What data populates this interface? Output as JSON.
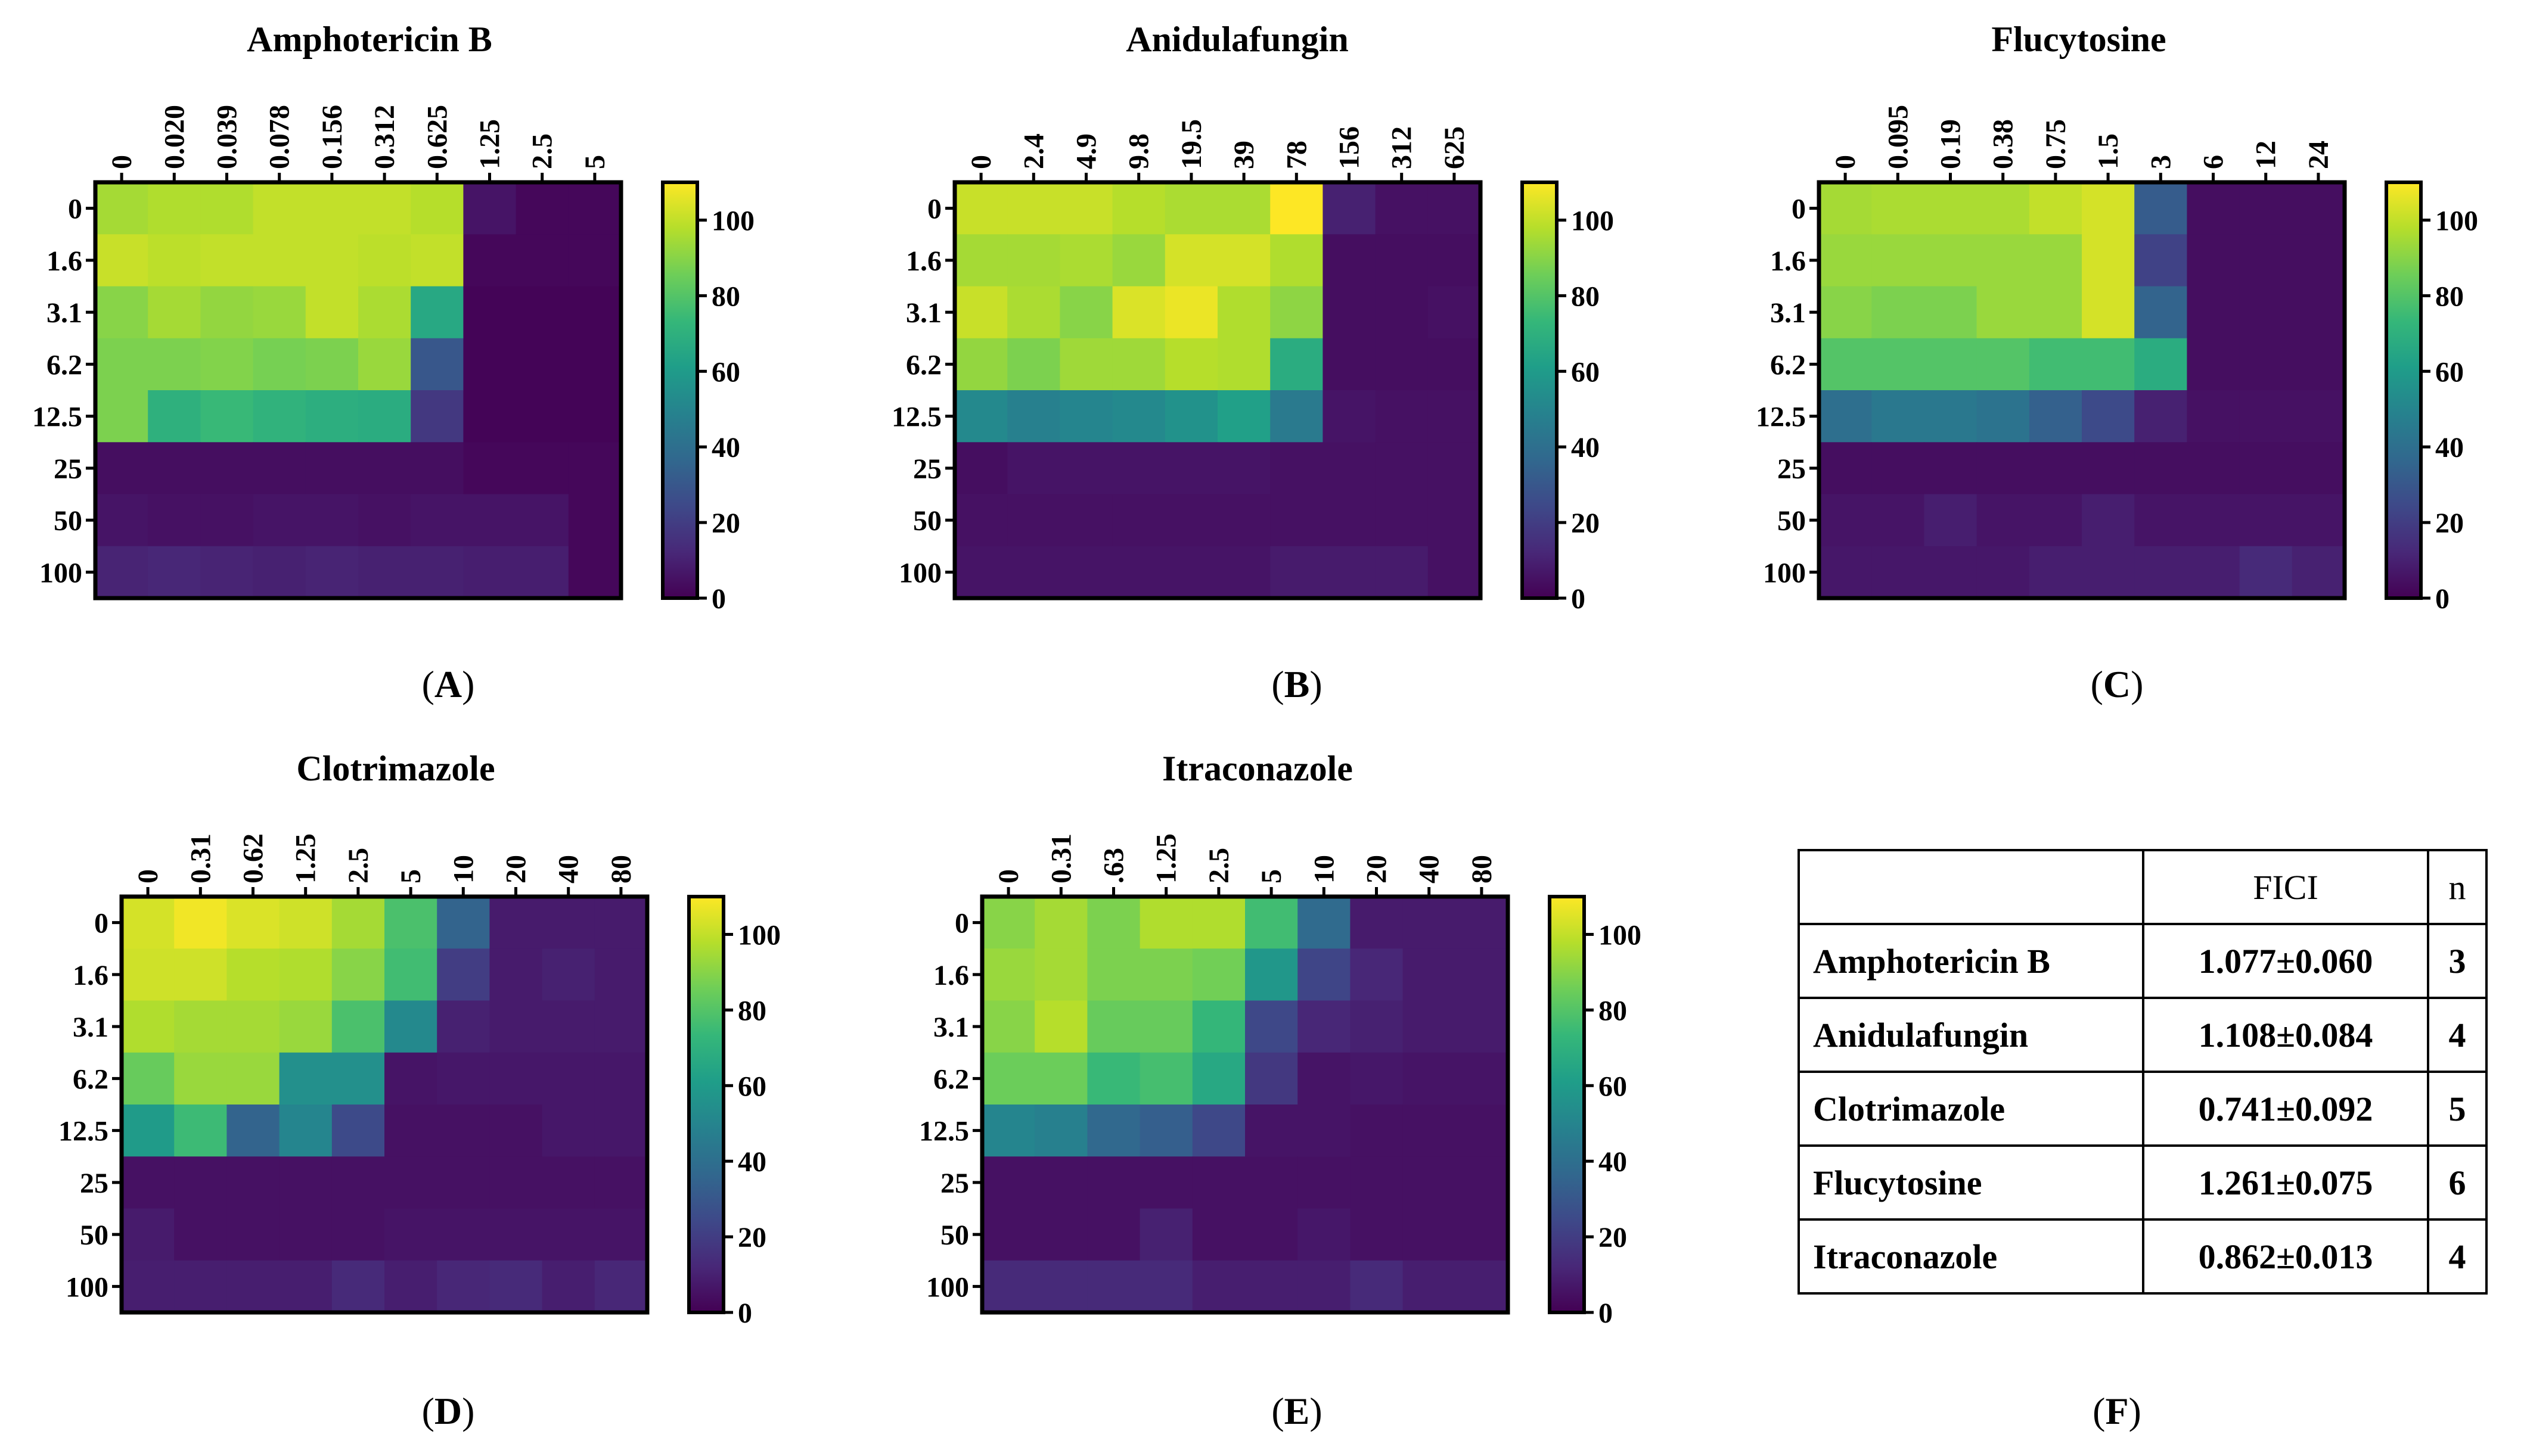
{
  "colorbar_ticks": [
    0,
    20,
    40,
    60,
    80,
    100
  ],
  "colormap": [
    "#440154",
    "#482878",
    "#3e4989",
    "#31688e",
    "#26828e",
    "#1f9e89",
    "#35b779",
    "#6ece58",
    "#b5de2b",
    "#fde725"
  ],
  "chart_data": [
    {
      "type": "heatmap",
      "panel": "A",
      "title": "Amphotericin B",
      "x": [
        "0",
        "0.020",
        "0.039",
        "0.078",
        "0.156",
        "0.312",
        "0.625",
        "1.25",
        "2.5",
        "5"
      ],
      "y": [
        "0",
        "1.6",
        "3.1",
        "6.2",
        "12.5",
        "25",
        "50",
        "100"
      ],
      "zlim": [
        0,
        110
      ],
      "values": [
        [
          95,
          97,
          97,
          100,
          100,
          100,
          98,
          6,
          2,
          2
        ],
        [
          101,
          99,
          100,
          100,
          100,
          99,
          100,
          2,
          2,
          2
        ],
        [
          90,
          95,
          92,
          93,
          100,
          96,
          66,
          1,
          1,
          1
        ],
        [
          88,
          88,
          89,
          87,
          88,
          93,
          30,
          1,
          1,
          1
        ],
        [
          88,
          70,
          74,
          71,
          69,
          68,
          18,
          1,
          1,
          1
        ],
        [
          4,
          4,
          4,
          4,
          4,
          4,
          4,
          2,
          2,
          2
        ],
        [
          6,
          5,
          5,
          6,
          6,
          5,
          6,
          6,
          6,
          2
        ],
        [
          11,
          12,
          11,
          10,
          11,
          10,
          10,
          9,
          9,
          2
        ]
      ]
    },
    {
      "type": "heatmap",
      "panel": "B",
      "title": "Anidulafungin",
      "x": [
        "0",
        "2.4",
        "4.9",
        "9.8",
        "19.5",
        "39",
        "78",
        "156",
        "312",
        "625"
      ],
      "y": [
        "0",
        "1.6",
        "3.1",
        "6.2",
        "12.5",
        "25",
        "50",
        "100"
      ],
      "zlim": [
        0,
        110
      ],
      "values": [
        [
          101,
          101,
          101,
          98,
          96,
          96,
          110,
          10,
          5,
          5
        ],
        [
          95,
          95,
          96,
          93,
          103,
          103,
          97,
          4,
          4,
          4
        ],
        [
          101,
          96,
          90,
          104,
          107,
          97,
          91,
          4,
          4,
          5
        ],
        [
          92,
          88,
          94,
          94,
          98,
          97,
          68,
          4,
          4,
          4
        ],
        [
          52,
          48,
          50,
          52,
          56,
          62,
          45,
          6,
          5,
          5
        ],
        [
          4,
          6,
          6,
          6,
          6,
          6,
          5,
          5,
          5,
          5
        ],
        [
          5,
          5,
          5,
          5,
          5,
          5,
          5,
          5,
          5,
          5
        ],
        [
          6,
          6,
          6,
          6,
          6,
          6,
          8,
          8,
          8,
          5
        ]
      ]
    },
    {
      "type": "heatmap",
      "panel": "C",
      "title": "Flucytosine",
      "x": [
        "0",
        "0.095",
        "0.19",
        "0.38",
        "0.75",
        "1.5",
        "3",
        "6",
        "12",
        "24"
      ],
      "y": [
        "0",
        "1.6",
        "3.1",
        "6.2",
        "12.5",
        "25",
        "50",
        "100"
      ],
      "zlim": [
        0,
        110
      ],
      "values": [
        [
          95,
          96,
          96,
          96,
          100,
          103,
          32,
          4,
          4,
          4
        ],
        [
          93,
          93,
          93,
          93,
          93,
          103,
          22,
          4,
          4,
          4
        ],
        [
          90,
          88,
          88,
          93,
          93,
          103,
          35,
          4,
          4,
          4
        ],
        [
          80,
          80,
          80,
          80,
          76,
          76,
          68,
          4,
          4,
          4
        ],
        [
          40,
          44,
          44,
          42,
          34,
          25,
          10,
          5,
          5,
          5
        ],
        [
          4,
          4,
          4,
          4,
          4,
          4,
          4,
          4,
          4,
          4
        ],
        [
          6,
          6,
          9,
          6,
          6,
          9,
          6,
          6,
          6,
          6
        ],
        [
          7,
          7,
          7,
          7,
          9,
          9,
          9,
          9,
          13,
          10
        ]
      ]
    },
    {
      "type": "heatmap",
      "panel": "D",
      "title": "Clotrimazole",
      "x": [
        "0",
        "0.31",
        "0.62",
        "1.25",
        "2.5",
        "5",
        "10",
        "20",
        "40",
        "80"
      ],
      "y": [
        "0",
        "1.6",
        "3.1",
        "6.2",
        "12.5",
        "25",
        "50",
        "100"
      ],
      "zlim": [
        0,
        110
      ],
      "values": [
        [
          103,
          108,
          104,
          102,
          95,
          78,
          35,
          8,
          8,
          8
        ],
        [
          102,
          102,
          98,
          97,
          90,
          76,
          20,
          8,
          10,
          8
        ],
        [
          97,
          95,
          95,
          93,
          78,
          52,
          10,
          8,
          8,
          8
        ],
        [
          84,
          93,
          93,
          55,
          55,
          6,
          7,
          7,
          7,
          7
        ],
        [
          60,
          75,
          35,
          50,
          25,
          5,
          5,
          5,
          7,
          7
        ],
        [
          5,
          5,
          5,
          5,
          5,
          5,
          5,
          5,
          5,
          5
        ],
        [
          8,
          5,
          5,
          5,
          5,
          6,
          6,
          6,
          6,
          6
        ],
        [
          9,
          9,
          9,
          9,
          13,
          9,
          12,
          13,
          9,
          12
        ]
      ]
    },
    {
      "type": "heatmap",
      "panel": "E",
      "title": "Itraconazole",
      "x": [
        "0",
        "0.31",
        ".63",
        "1.25",
        "2.5",
        "5",
        "10",
        "20",
        "40",
        "80"
      ],
      "y": [
        "0",
        "1.6",
        "3.1",
        "6.2",
        "12.5",
        "25",
        "50",
        "100"
      ],
      "zlim": [
        0,
        110
      ],
      "values": [
        [
          90,
          95,
          88,
          97,
          97,
          76,
          38,
          8,
          8,
          8
        ],
        [
          93,
          95,
          88,
          88,
          86,
          58,
          23,
          12,
          8,
          8
        ],
        [
          90,
          98,
          84,
          84,
          73,
          24,
          12,
          10,
          8,
          8
        ],
        [
          85,
          85,
          74,
          77,
          66,
          18,
          6,
          7,
          6,
          6
        ],
        [
          50,
          48,
          37,
          33,
          24,
          6,
          6,
          5,
          5,
          5
        ],
        [
          5,
          5,
          5,
          5,
          5,
          5,
          5,
          5,
          5,
          5
        ],
        [
          5,
          5,
          5,
          10,
          5,
          5,
          7,
          5,
          5,
          5
        ],
        [
          13,
          13,
          13,
          13,
          9,
          9,
          9,
          13,
          9,
          9
        ]
      ]
    },
    {
      "type": "table",
      "panel": "F",
      "columns": [
        "",
        "FICI",
        "n"
      ],
      "rows": [
        [
          "Amphotericin B",
          "1.077±0.060",
          "3"
        ],
        [
          "Anidulafungin",
          "1.108±0.084",
          "4"
        ],
        [
          "Clotrimazole",
          "0.741±0.092",
          "5"
        ],
        [
          "Flucytosine",
          "1.261±0.075",
          "6"
        ],
        [
          "Itraconazole",
          "0.862±0.013",
          "4"
        ]
      ]
    }
  ]
}
